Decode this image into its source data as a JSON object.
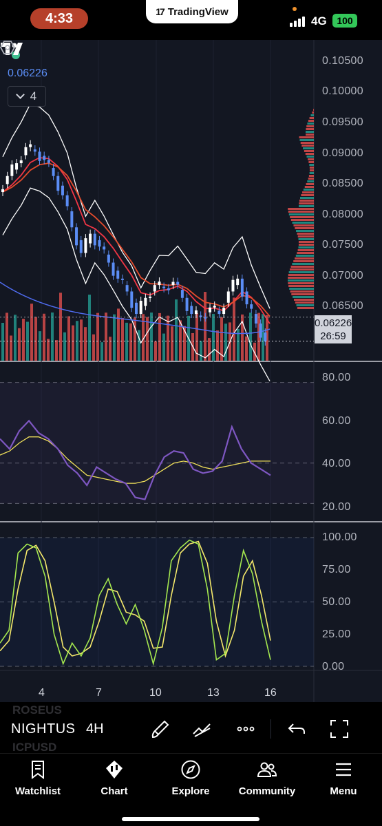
{
  "status_bar": {
    "time": "4:33",
    "app_badge": "TradingView",
    "network": "4G",
    "battery": "100"
  },
  "chart": {
    "last_price": "0.06226",
    "countdown": "26:59",
    "indicator_count": "4",
    "price_axis": [
      "0.10500",
      "0.10000",
      "0.09500",
      "0.09000",
      "0.08500",
      "0.08000",
      "0.07500",
      "0.07000",
      "0.06500"
    ],
    "rsi_axis": [
      "80.00",
      "60.00",
      "40.00",
      "20.00"
    ],
    "stoch_axis": [
      "100.00",
      "75.00",
      "50.00",
      "25.00",
      "0.00"
    ],
    "date_axis": [
      "4",
      "7",
      "10",
      "13",
      "16"
    ],
    "colors": {
      "background": "#131722",
      "bollinger": "#ffffff",
      "ema_fast": "#f23645",
      "ema_slow": "#e44b2c",
      "candle_up": "#ffffff",
      "candle_down": "#5b8df5",
      "vol_up": "#26a69a",
      "vol_down": "#ef5350",
      "rsi": "#7e57c2",
      "rsi_ma": "#f0e05a",
      "stoch_k": "#a5e84f",
      "stoch_d": "#f5e96b"
    }
  },
  "chart_data": [
    {
      "type": "line",
      "title": "",
      "x_ticks": [
        "4",
        "7",
        "10",
        "13",
        "16"
      ],
      "series": [],
      "close": [
        0.0855,
        0.088,
        0.09,
        0.0925,
        0.0918,
        0.0905,
        0.088,
        0.085,
        0.08,
        0.076,
        0.079,
        0.077,
        0.0745,
        0.072,
        0.07,
        0.0665,
        0.069,
        0.071,
        0.0705,
        0.0715,
        0.069,
        0.0665,
        0.066,
        0.0675,
        0.0665,
        0.07,
        0.072,
        0.068,
        0.065,
        0.0622
      ],
      "ylim": [
        0.062,
        0.106
      ],
      "last": 0.06226
    },
    {
      "type": "line",
      "title": "",
      "series": [],
      "values": [
        52,
        47,
        56,
        61,
        55,
        52,
        47,
        39,
        35,
        29,
        38,
        35,
        32,
        30,
        23,
        22,
        34,
        43,
        46,
        45,
        37,
        35,
        36,
        41,
        58,
        47,
        40,
        37,
        34
      ],
      "ma": [
        44,
        46,
        50,
        53,
        53,
        51,
        47,
        42,
        38,
        34,
        33,
        32,
        31,
        30,
        30,
        31,
        34,
        37,
        40,
        41,
        40,
        38,
        37,
        38,
        39,
        40,
        41,
        41,
        41
      ],
      "ylim": [
        15,
        85
      ]
    },
    {
      "type": "line",
      "title": "",
      "series": [],
      "k": [
        18,
        28,
        88,
        95,
        92,
        70,
        25,
        2,
        18,
        8,
        22,
        55,
        68,
        48,
        33,
        48,
        28,
        2,
        30,
        82,
        92,
        98,
        95,
        60,
        5,
        10,
        55,
        90,
        72,
        35,
        5
      ],
      "d": [
        12,
        20,
        60,
        90,
        94,
        82,
        50,
        15,
        8,
        10,
        15,
        35,
        60,
        58,
        42,
        40,
        35,
        14,
        15,
        55,
        88,
        95,
        97,
        80,
        35,
        8,
        28,
        70,
        82,
        55,
        20
      ],
      "ylim": [
        0,
        100
      ]
    }
  ],
  "toolbar": {
    "ghost_symbols": [
      "ROSEUS",
      "ICPUSD"
    ],
    "symbol": "NIGHTUS",
    "interval": "4H"
  },
  "nav": {
    "items": [
      {
        "label": "Watchlist",
        "icon": "bookmark-icon"
      },
      {
        "label": "Chart",
        "icon": "candles-icon"
      },
      {
        "label": "Explore",
        "icon": "compass-icon"
      },
      {
        "label": "Community",
        "icon": "community-icon"
      },
      {
        "label": "Menu",
        "icon": "menu-icon"
      }
    ]
  }
}
